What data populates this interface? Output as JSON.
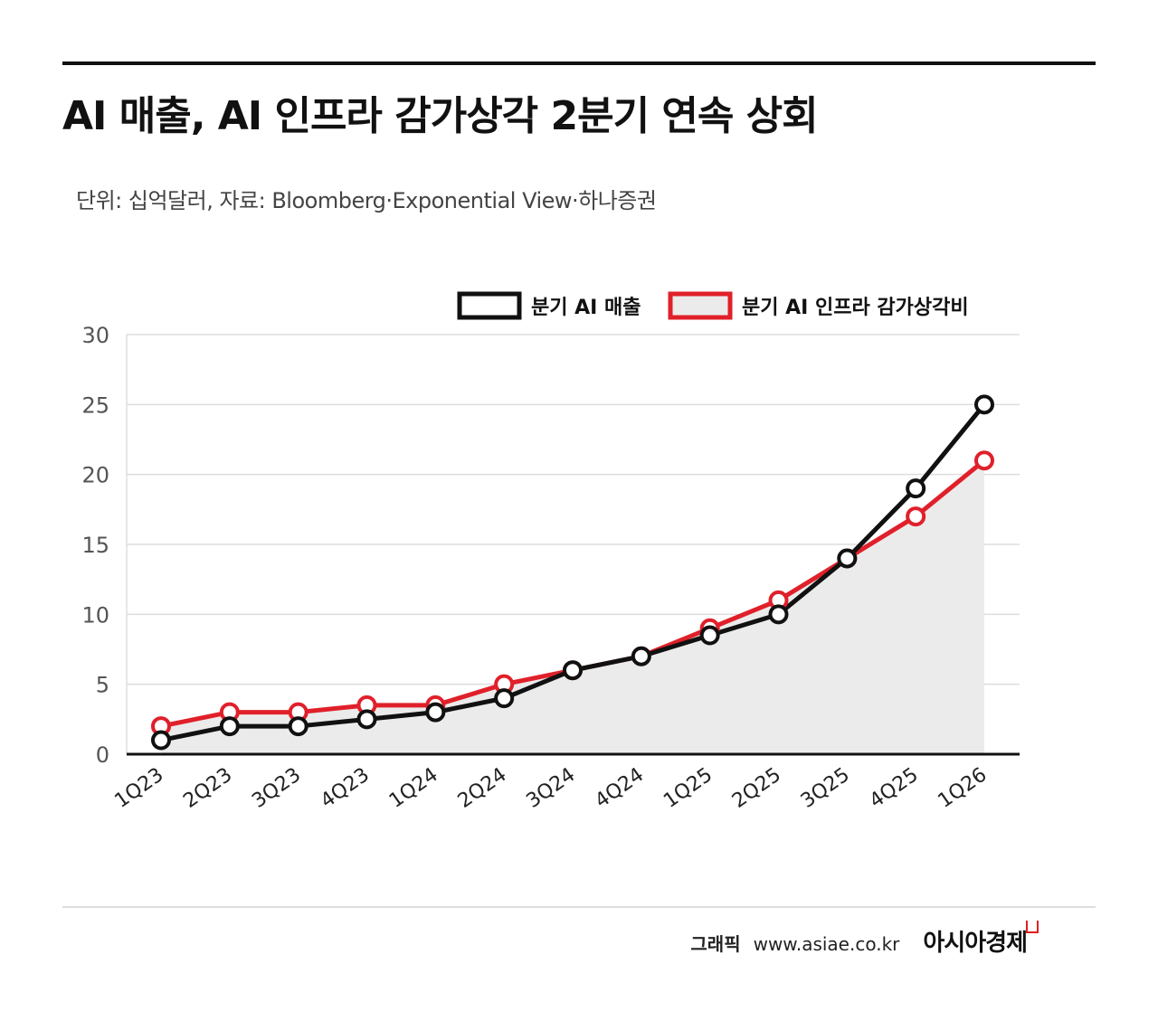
{
  "title": "AI 매출, AI 인프라 감가상각 2분기 연속 상회",
  "subtitle": "단위: 십억달러, 자료: Bloomberg·Exponential View·하나증권",
  "footer": {
    "label": "그래픽",
    "url": "www.asiae.co.kr",
    "brand": "아시아경제"
  },
  "colors": {
    "revenue": "#111111",
    "depreciation": "#e0202a",
    "area_fill": "#ebebeb",
    "grid": "#dddddd"
  },
  "chart_data": {
    "type": "line",
    "categories": [
      "1Q23",
      "2Q23",
      "3Q23",
      "4Q23",
      "1Q24",
      "2Q24",
      "3Q24",
      "4Q24",
      "1Q25",
      "2Q25",
      "3Q25",
      "4Q25",
      "1Q26"
    ],
    "series": [
      {
        "name": "분기 AI 매출",
        "values": [
          1,
          2,
          2,
          2.5,
          3,
          4,
          6,
          7,
          8.5,
          10,
          14,
          19,
          25
        ]
      },
      {
        "name": "분기 AI 인프라 감가상각비",
        "values": [
          2,
          3,
          3,
          3.5,
          3.5,
          5,
          6,
          7,
          9,
          11,
          14,
          17,
          21
        ]
      }
    ],
    "yticks": [
      0,
      5,
      10,
      15,
      20,
      25,
      30
    ],
    "ylim": [
      0,
      30
    ],
    "grid": true,
    "legend_position": "top-right"
  }
}
